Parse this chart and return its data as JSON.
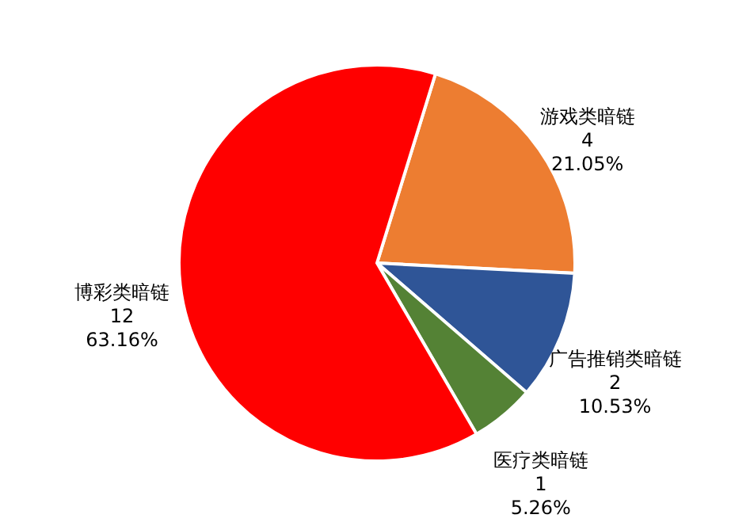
{
  "chart_data": {
    "type": "pie",
    "categories": [
      "游戏类暗链",
      "广告推销类暗链",
      "医疗类暗链",
      "博彩类暗链"
    ],
    "values": [
      21.05,
      10.53,
      5.26,
      63.16
    ],
    "colors": [
      "#ed7d31",
      "#2f5597",
      "#548235",
      "#ff0000"
    ],
    "value_labels": [
      "4\n21.05%",
      "2\n10.53%",
      "1\n5.26%",
      "12\n63.16%"
    ],
    "legend": false
  }
}
